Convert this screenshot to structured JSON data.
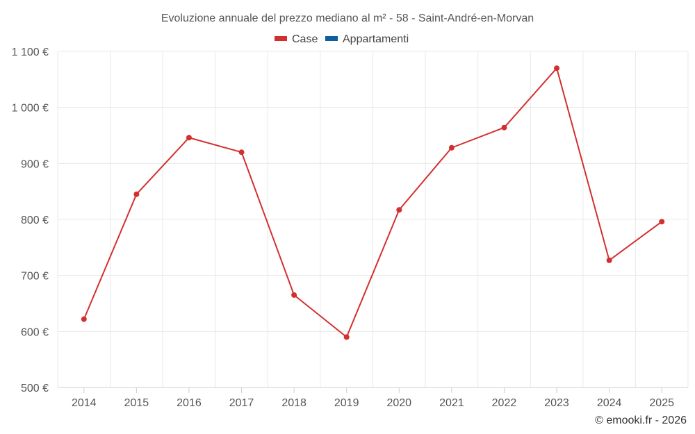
{
  "chart_data": {
    "type": "line",
    "title": "Evoluzione annuale del prezzo mediano al m² - 58 - Saint-André-en-Morvan",
    "categories": [
      "2014",
      "2015",
      "2016",
      "2017",
      "2018",
      "2019",
      "2020",
      "2021",
      "2022",
      "2023",
      "2024",
      "2025"
    ],
    "y_tick_labels": [
      "500 €",
      "600 €",
      "700 €",
      "800 €",
      "900 €",
      "1 000 €",
      "1 100 €"
    ],
    "y_ticks": [
      500,
      600,
      700,
      800,
      900,
      1000,
      1100
    ],
    "ylim": [
      500,
      1100
    ],
    "grid": true,
    "legend_position": "top-center",
    "legend": [
      {
        "name": "Case",
        "color": "#d32f2f"
      },
      {
        "name": "Appartamenti",
        "color": "#0d5fa0"
      }
    ],
    "series": [
      {
        "name": "Case",
        "color": "#d32f2f",
        "values": [
          622,
          845,
          946,
          920,
          665,
          590,
          817,
          928,
          964,
          1070,
          727,
          796
        ]
      }
    ]
  },
  "footer": {
    "credit": "© emooki.fr - 2026"
  }
}
